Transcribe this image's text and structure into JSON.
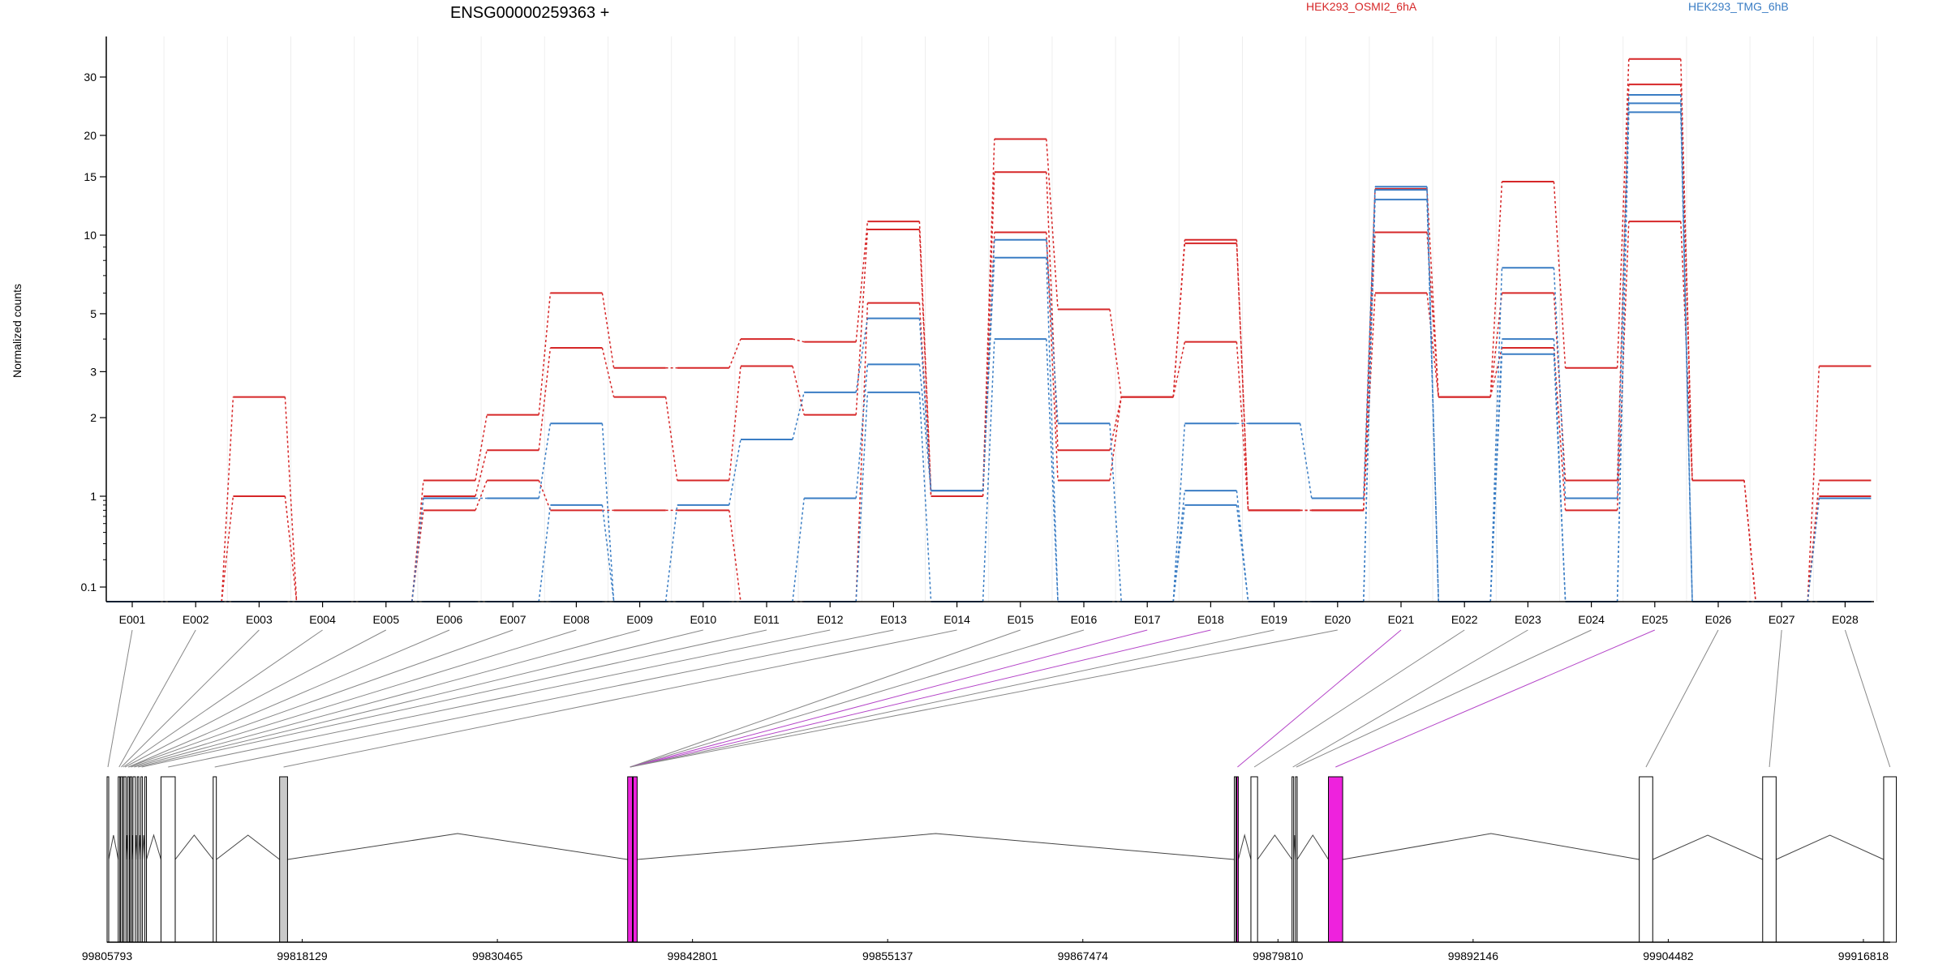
{
  "chart_data": {
    "type": "line",
    "title": "ENSG00000259363 +",
    "ylabel": "Normalized counts",
    "yscale": "log",
    "yticks": [
      0.1,
      1,
      2,
      3,
      5,
      10,
      15,
      20,
      30
    ],
    "ylim": [
      0.08,
      45
    ],
    "categories": [
      "E001",
      "E002",
      "E003",
      "E004",
      "E005",
      "E006",
      "E007",
      "E008",
      "E009",
      "E010",
      "E011",
      "E012",
      "E013",
      "E014",
      "E015",
      "E016",
      "E017",
      "E018",
      "E019",
      "E020",
      "E021",
      "E022",
      "E023",
      "E024",
      "E025",
      "E026",
      "E027",
      "E028"
    ],
    "groups": [
      {
        "name": "HEK293_OSMI2_6hA",
        "color": "#d62728"
      },
      {
        "name": "HEK293_TMG_6hB",
        "color": "#3a7dc4"
      }
    ],
    "series": [
      {
        "group": "HEK293_OSMI2_6hA",
        "values": [
          0.08,
          0.08,
          2.4,
          0.08,
          0.08,
          1.15,
          2.05,
          6.0,
          3.1,
          3.1,
          4.0,
          3.9,
          11.0,
          1.05,
          19.5,
          5.2,
          2.4,
          9.6,
          0.7,
          0.7,
          13.8,
          2.4,
          14.5,
          3.1,
          34.0,
          1.15,
          0.08,
          3.15
        ]
      },
      {
        "group": "HEK293_OSMI2_6hA",
        "values": [
          0.08,
          0.08,
          1.0,
          0.08,
          0.08,
          1.0,
          1.5,
          3.7,
          2.4,
          1.15,
          3.15,
          2.05,
          10.4,
          1.0,
          15.5,
          1.5,
          2.4,
          9.3,
          0.7,
          0.7,
          10.2,
          2.4,
          6.0,
          1.15,
          28.5,
          1.15,
          0.08,
          1.15
        ]
      },
      {
        "group": "HEK293_OSMI2_6hA",
        "values": [
          0.08,
          0.08,
          0.08,
          0.08,
          0.08,
          0.7,
          1.15,
          0.7,
          0.7,
          0.7,
          0.08,
          0.08,
          5.5,
          1.0,
          10.2,
          1.15,
          2.4,
          3.9,
          0.7,
          0.7,
          6.0,
          2.4,
          3.7,
          0.7,
          11.0,
          1.15,
          0.08,
          1.0
        ]
      },
      {
        "group": "HEK293_TMG_6hB",
        "values": [
          0.08,
          0.08,
          0.08,
          0.08,
          0.08,
          0.95,
          0.95,
          1.9,
          0.08,
          0.8,
          1.65,
          2.5,
          4.8,
          1.05,
          9.6,
          1.9,
          0.08,
          1.9,
          1.9,
          0.95,
          14.0,
          0.08,
          7.5,
          0.95,
          26.5,
          0.08,
          0.08,
          0.95
        ]
      },
      {
        "group": "HEK293_TMG_6hB",
        "values": [
          0.08,
          0.08,
          0.08,
          0.08,
          0.08,
          0.08,
          0.08,
          0.8,
          0.08,
          0.08,
          0.08,
          0.95,
          3.2,
          1.05,
          8.2,
          0.08,
          0.08,
          1.05,
          0.08,
          0.08,
          13.7,
          0.08,
          4.0,
          0.08,
          25.0,
          0.08,
          0.08,
          0.08
        ]
      },
      {
        "group": "HEK293_TMG_6hB",
        "values": [
          0.08,
          0.08,
          0.08,
          0.08,
          0.08,
          0.08,
          0.08,
          0.08,
          0.08,
          0.08,
          0.08,
          0.08,
          2.5,
          0.08,
          4.0,
          0.08,
          0.08,
          0.8,
          0.08,
          0.08,
          12.8,
          0.08,
          3.5,
          0.08,
          23.5,
          0.08,
          0.08,
          0.08
        ]
      }
    ],
    "gene_model": {
      "start": 99805793,
      "end": 99918000,
      "coordinate_ticks": [
        99805793,
        99818129,
        99830465,
        99842801,
        99855137,
        99867474,
        99879810,
        99892146,
        99904482,
        99916818
      ],
      "highlight_color": "#ee22dd",
      "gray_color": "#c8c8c8",
      "exons": [
        {
          "id": "E001",
          "start": 99805793,
          "end": 99805870,
          "fill": "white"
        },
        {
          "id": "E002",
          "start": 99806500,
          "end": 99806560,
          "fill": "white"
        },
        {
          "id": "E003",
          "start": 99806640,
          "end": 99806690,
          "fill": "white"
        },
        {
          "id": "E004",
          "start": 99806760,
          "end": 99806790,
          "fill": "white"
        },
        {
          "id": "E005",
          "start": 99806860,
          "end": 99806990,
          "fill": "white"
        },
        {
          "id": "E006",
          "start": 99807090,
          "end": 99807140,
          "fill": "white"
        },
        {
          "id": "E007",
          "start": 99807250,
          "end": 99807310,
          "fill": "white"
        },
        {
          "id": "E008",
          "start": 99807430,
          "end": 99807580,
          "fill": "white"
        },
        {
          "id": "E009",
          "start": 99807700,
          "end": 99807760,
          "fill": "white"
        },
        {
          "id": "E010",
          "start": 99807930,
          "end": 99807990,
          "fill": "white"
        },
        {
          "id": "E011",
          "start": 99808180,
          "end": 99808240,
          "fill": "white"
        },
        {
          "id": "E012",
          "start": 99809200,
          "end": 99810100,
          "fill": "white"
        },
        {
          "id": "E013",
          "start": 99812500,
          "end": 99812700,
          "fill": "white"
        },
        {
          "id": "E014",
          "start": 99816700,
          "end": 99817200,
          "fill": "gray"
        },
        {
          "id": "E015",
          "start": 99838700,
          "end": 99839000,
          "fill": "highlight"
        },
        {
          "id": "E016",
          "start": 99839050,
          "end": 99839300,
          "fill": "highlight"
        },
        {
          "id": "E017",
          "start": 99877050,
          "end": 99877100,
          "fill": "white"
        },
        {
          "id": "E018",
          "start": 99877200,
          "end": 99877300,
          "fill": "highlight"
        },
        {
          "id": "E019",
          "start": 99878100,
          "end": 99878520,
          "fill": "white"
        },
        {
          "id": "E020",
          "start": 99880700,
          "end": 99880800,
          "fill": "white"
        },
        {
          "id": "E021",
          "start": 99880920,
          "end": 99881000,
          "fill": "white"
        },
        {
          "id": "E022",
          "start": 99883000,
          "end": 99883900,
          "fill": "highlight"
        },
        {
          "id": "E023",
          "start": 99902650,
          "end": 99903500,
          "fill": "white"
        },
        {
          "id": "E024",
          "start": 99910450,
          "end": 99911300,
          "fill": "white"
        },
        {
          "id": "E025",
          "start": 99918100,
          "end": 99918900,
          "fill": "white"
        }
      ],
      "label_links": [
        {
          "label": "E001",
          "exon": "E001",
          "color": "gray"
        },
        {
          "label": "E002",
          "exon": "E002",
          "color": "gray"
        },
        {
          "label": "E003",
          "exon": "E003",
          "color": "gray"
        },
        {
          "label": "E004",
          "exon": "E004",
          "color": "gray"
        },
        {
          "label": "E005",
          "exon": "E005",
          "color": "gray"
        },
        {
          "label": "E006",
          "exon": "E006",
          "color": "gray"
        },
        {
          "label": "E007",
          "exon": "E006",
          "color": "gray"
        },
        {
          "label": "E008",
          "exon": "E007",
          "color": "gray"
        },
        {
          "label": "E009",
          "exon": "E008",
          "color": "gray"
        },
        {
          "label": "E010",
          "exon": "E009",
          "color": "gray"
        },
        {
          "label": "E011",
          "exon": "E010",
          "color": "gray"
        },
        {
          "label": "E012",
          "exon": "E012",
          "color": "gray"
        },
        {
          "label": "E013",
          "exon": "E013",
          "color": "gray"
        },
        {
          "label": "E014",
          "exon": "E014",
          "color": "gray"
        },
        {
          "label": "E015",
          "exon": "E015",
          "color": "gray"
        },
        {
          "label": "E016",
          "exon": "E015",
          "color": "gray"
        },
        {
          "label": "E017",
          "exon": "E015",
          "color": "highlight"
        },
        {
          "label": "E018",
          "exon": "E015",
          "color": "highlight"
        },
        {
          "label": "E019",
          "exon": "E015",
          "color": "gray"
        },
        {
          "label": "E020",
          "exon": "E015",
          "color": "gray"
        },
        {
          "label": "E021",
          "exon": "E018",
          "color": "highlight"
        },
        {
          "label": "E022",
          "exon": "E019",
          "color": "gray"
        },
        {
          "label": "E023",
          "exon": "E020",
          "color": "gray"
        },
        {
          "label": "E024",
          "exon": "E021",
          "color": "gray"
        },
        {
          "label": "E025",
          "exon": "E022",
          "color": "highlight"
        },
        {
          "label": "E026",
          "exon": "E023",
          "color": "gray"
        },
        {
          "label": "E027",
          "exon": "E024",
          "color": "gray"
        },
        {
          "label": "E028",
          "exon": "E025",
          "color": "gray"
        }
      ]
    }
  }
}
